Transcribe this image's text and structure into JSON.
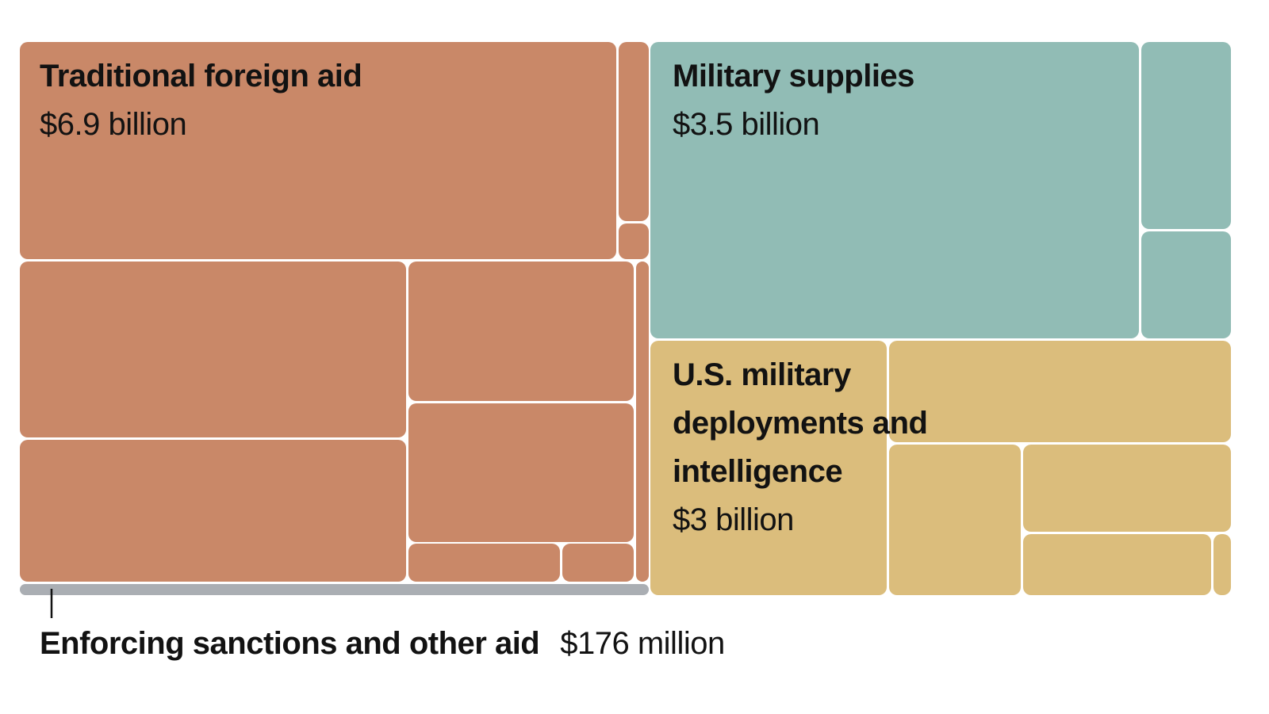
{
  "chart_data": {
    "type": "treemap",
    "categories": [
      "Traditional foreign aid",
      "Military supplies",
      "U.S. military deployments and intelligence",
      "Enforcing sanctions and other aid"
    ],
    "values": [
      6.9,
      3.5,
      3,
      0.176
    ],
    "value_labels": [
      "$6.9 billion",
      "$3.5 billion",
      "$3 billion",
      "$176 million"
    ],
    "colors": [
      "#c98868",
      "#91bcb5",
      "#dbbd7c",
      "#aaaeb3"
    ]
  }
}
